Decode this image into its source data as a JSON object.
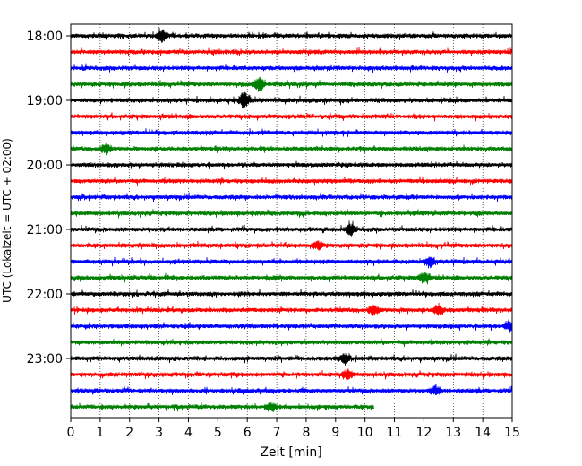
{
  "chart_data": {
    "type": "line",
    "title": "",
    "xlabel": "Zeit  [min]",
    "ylabel": "UTC (Lokalzeit = UTC + 02:00)",
    "xlim": [
      0,
      15
    ],
    "x_ticks": [
      "0",
      "1",
      "2",
      "3",
      "4",
      "5",
      "6",
      "7",
      "8",
      "9",
      "10",
      "11",
      "12",
      "13",
      "14",
      "15"
    ],
    "y_tick_labels": [
      "18:00",
      "19:00",
      "20:00",
      "21:00",
      "22:00",
      "23:00"
    ],
    "grid": "vertical dotted lines at each minute",
    "trace_interval_min": 15,
    "trace_colors_cycle": [
      "#000000",
      "#ff0000",
      "#0000ff",
      "#008000"
    ],
    "traces": [
      {
        "start": "18:00",
        "end_min": 15
      },
      {
        "start": "18:15",
        "end_min": 15
      },
      {
        "start": "18:30",
        "end_min": 15
      },
      {
        "start": "18:45",
        "end_min": 15
      },
      {
        "start": "19:00",
        "end_min": 15
      },
      {
        "start": "19:15",
        "end_min": 15
      },
      {
        "start": "19:30",
        "end_min": 15
      },
      {
        "start": "19:45",
        "end_min": 15
      },
      {
        "start": "20:00",
        "end_min": 15
      },
      {
        "start": "20:15",
        "end_min": 15
      },
      {
        "start": "20:30",
        "end_min": 15
      },
      {
        "start": "20:45",
        "end_min": 15
      },
      {
        "start": "21:00",
        "end_min": 15
      },
      {
        "start": "21:15",
        "end_min": 15
      },
      {
        "start": "21:30",
        "end_min": 15
      },
      {
        "start": "21:45",
        "end_min": 15
      },
      {
        "start": "22:00",
        "end_min": 15
      },
      {
        "start": "22:15",
        "end_min": 15
      },
      {
        "start": "22:30",
        "end_min": 15
      },
      {
        "start": "22:45",
        "end_min": 15
      },
      {
        "start": "23:00",
        "end_min": 15
      },
      {
        "start": "23:15",
        "end_min": 15
      },
      {
        "start": "23:30",
        "end_min": 15
      },
      {
        "start": "23:45",
        "end_min": 10.3
      }
    ],
    "bursts": [
      {
        "trace": 0,
        "x": 3.1,
        "amp": 6
      },
      {
        "trace": 3,
        "x": 6.4,
        "amp": 8
      },
      {
        "trace": 4,
        "x": 5.9,
        "amp": 9
      },
      {
        "trace": 7,
        "x": 1.2,
        "amp": 5
      },
      {
        "trace": 12,
        "x": 9.5,
        "amp": 6
      },
      {
        "trace": 13,
        "x": 8.4,
        "amp": 4
      },
      {
        "trace": 14,
        "x": 12.2,
        "amp": 6
      },
      {
        "trace": 15,
        "x": 12.0,
        "amp": 7
      },
      {
        "trace": 17,
        "x": 12.5,
        "amp": 6
      },
      {
        "trace": 17,
        "x": 10.3,
        "amp": 5
      },
      {
        "trace": 18,
        "x": 14.9,
        "amp": 6
      },
      {
        "trace": 20,
        "x": 9.3,
        "amp": 5
      },
      {
        "trace": 21,
        "x": 9.4,
        "amp": 5
      },
      {
        "trace": 22,
        "x": 12.4,
        "amp": 5
      },
      {
        "trace": 23,
        "x": 6.8,
        "amp": 5
      }
    ]
  }
}
